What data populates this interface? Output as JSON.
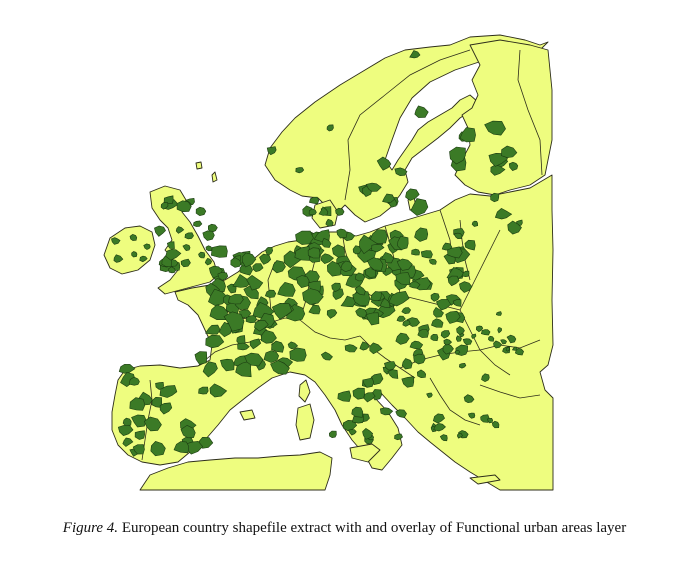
{
  "figure": {
    "caption_label": "Figure 4.",
    "caption_text": "European country shapefile extract with and overlay of Functional urban areas layer"
  },
  "map": {
    "layers": [
      "European country shapefile",
      "Functional urban areas"
    ],
    "colors": {
      "country_fill": "#eefd7f",
      "border": "#2d2d1a",
      "urban_area_fill": "#3b7a26"
    }
  }
}
